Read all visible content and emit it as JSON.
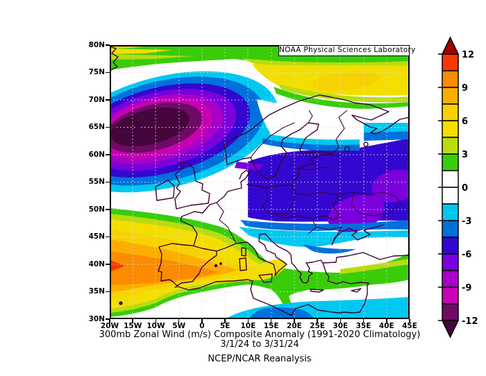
{
  "branding_label": "NOAA Physical Sciences Laboratory",
  "caption": {
    "line1": "300mb Zonal Wind (m/s) Composite Anomaly (1991-2020 Climatology)",
    "line2": "3/1/24  to 3/31/24",
    "line3": "NCEP/NCAR Reanalysis"
  },
  "axes": {
    "lat_ticks": [
      "80N",
      "75N",
      "70N",
      "65N",
      "60N",
      "55N",
      "50N",
      "45N",
      "40N",
      "35N",
      "30N"
    ],
    "lon_ticks": [
      "20W",
      "15W",
      "10W",
      "5W",
      "0",
      "5E",
      "10E",
      "15E",
      "20E",
      "25E",
      "30E",
      "35E",
      "40E",
      "45E"
    ]
  },
  "colorbar": {
    "tick_labels": [
      "12",
      "9",
      "6",
      "3",
      "0",
      "-3",
      "-6",
      "-9",
      "-12"
    ],
    "segment_colors": [
      "#f83800",
      "#fb8b00",
      "#fcae00",
      "#f7d200",
      "#f3de00",
      "#b8dc10",
      "#38cd08",
      "#ffffff",
      "#ffffff",
      "#00c8f0",
      "#0070dc",
      "#3307cf",
      "#7a00dc",
      "#a800c8",
      "#c800b4",
      "#6f0a64"
    ],
    "arrow_top_color": "#a00000",
    "arrow_bottom_color": "#44063c"
  },
  "palette": {
    "gt12": "#a00000",
    "v10_5": "#f83800",
    "v9": "#fb8b00",
    "v7_5": "#fcae00",
    "v6": "#f7d200",
    "v4_5": "#f3de00",
    "v3": "#b8dc10",
    "v1_5": "#38cd08",
    "zero": "#ffffff",
    "m3": "#00c8f0",
    "m4_5": "#0070dc",
    "m6": "#3307cf",
    "m7_5": "#7a00dc",
    "m9": "#a800c8",
    "m10_5": "#c800b4",
    "m12": "#6f0a64",
    "lt12": "#44063c",
    "coast": "#3d0336",
    "grid": "#e0e0e0"
  },
  "chart_data": {
    "type": "heatmap",
    "subtype": "filled-contour-map",
    "variable": "300mb Zonal Wind Composite Anomaly",
    "units": "m/s",
    "period": "3/1/24 to 3/31/24",
    "climatology": "1991-2020",
    "source_label": "NCEP/NCAR Reanalysis",
    "region": {
      "lon_min": -20,
      "lon_max": 45,
      "lat_min": 30,
      "lat_max": 80
    },
    "contour_interval": 1.5,
    "scale_range": [
      -12,
      12
    ],
    "colorbar_levels": [
      12,
      10.5,
      9,
      7.5,
      6,
      4.5,
      3,
      1.5,
      0,
      -1.5,
      -3,
      -4.5,
      -6,
      -7.5,
      -9,
      -10.5,
      -12
    ],
    "grid": true,
    "grid_interval_deg": 5,
    "anomaly_centers": [
      {
        "lon": -12,
        "lat": 64,
        "value_mps": -13,
        "description": "strong negative anomaly over NE Atlantic south of Iceland"
      },
      {
        "lon": 42,
        "lat": 54,
        "value_mps": -7,
        "description": "negative anomaly lobe over western Russia"
      },
      {
        "lon": 33,
        "lat": 49,
        "value_mps": -7,
        "description": "negative anomaly lobe over Ukraine"
      },
      {
        "lon": -19,
        "lat": 40,
        "value_mps": 11,
        "description": "positive anomaly maximum in Atlantic west of Iberia"
      },
      {
        "lon": -3,
        "lat": 39.5,
        "value_mps": 10,
        "description": "positive anomaly over Spain"
      },
      {
        "lon": 32,
        "lat": 70.5,
        "value_mps": 8,
        "description": "positive anomaly over Barents / Kola region"
      },
      {
        "lon": 25,
        "lat": 63,
        "value_mps": 0,
        "description": "near-zero band over Finland"
      },
      {
        "lon": 30,
        "lat": 42,
        "value_mps": 0,
        "description": "near-zero band over Black Sea / Turkey"
      }
    ]
  }
}
